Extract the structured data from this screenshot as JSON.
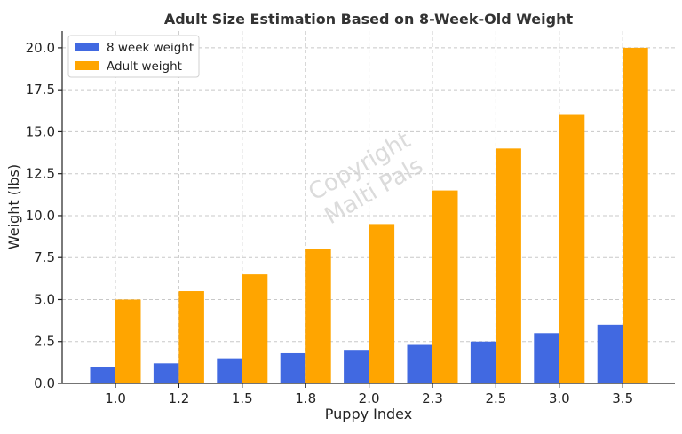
{
  "chart_data": {
    "type": "bar",
    "title": "Adult Size Estimation Based on 8-Week-Old Weight",
    "xlabel": "Puppy Index",
    "ylabel": "Weight (lbs)",
    "categories": [
      "1.0",
      "1.2",
      "1.5",
      "1.8",
      "2.0",
      "2.3",
      "2.5",
      "3.0",
      "3.5"
    ],
    "series": [
      {
        "name": "8 week weight",
        "color": "#4169e1",
        "values": [
          1.0,
          1.2,
          1.5,
          1.8,
          2.0,
          2.3,
          2.5,
          3.0,
          3.5
        ]
      },
      {
        "name": "Adult weight",
        "color": "#ffa500",
        "values": [
          5.0,
          5.5,
          6.5,
          8.0,
          9.5,
          11.5,
          14.0,
          16.0,
          20.0
        ]
      }
    ],
    "ylim": [
      0,
      21
    ],
    "yticks": [
      "0.0",
      "2.5",
      "5.0",
      "7.5",
      "10.0",
      "12.5",
      "15.0",
      "17.5",
      "20.0"
    ],
    "grid": true,
    "legend_position": "top-left",
    "watermark": [
      "Copyright",
      "Malti Pals"
    ]
  }
}
